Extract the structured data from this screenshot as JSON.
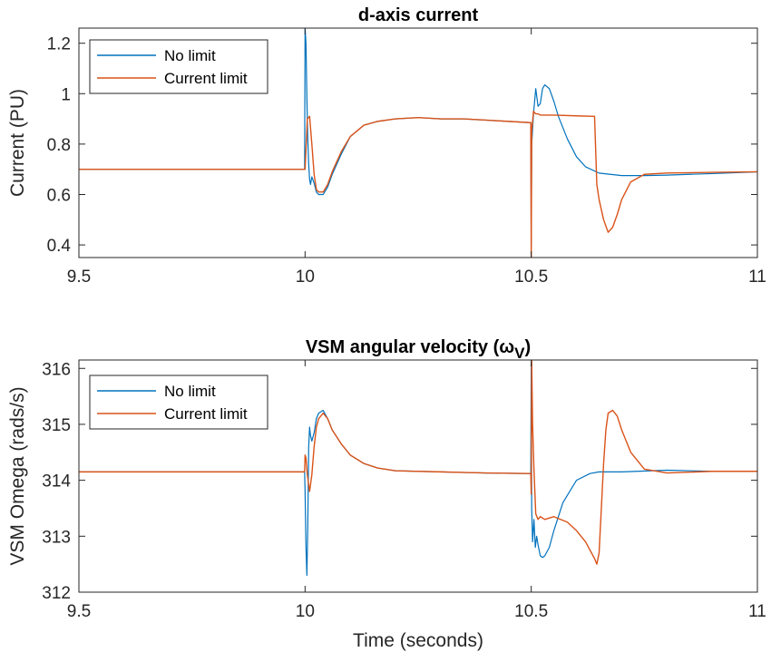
{
  "chart_data": [
    {
      "type": "line",
      "title": "d-axis current",
      "xlabel": "",
      "ylabel": "Current (PU)",
      "xlim": [
        9.5,
        11
      ],
      "ylim": [
        0.35,
        1.26
      ],
      "xticks": [
        9.5,
        10,
        10.5,
        11
      ],
      "xtick_labels": [
        "9.5",
        "10",
        "10.5",
        "11"
      ],
      "yticks": [
        0.4,
        0.6,
        0.8,
        1,
        1.2
      ],
      "ytick_labels": [
        "0.4",
        "0.6",
        "0.8",
        "1",
        "1.2"
      ],
      "grid": false,
      "legend_position": "top-left",
      "series": [
        {
          "name": "No limit",
          "color": "#0072BD",
          "x": [
            9.5,
            9.999,
            10.0,
            10.002,
            10.004,
            10.006,
            10.008,
            10.01,
            10.012,
            10.015,
            10.02,
            10.025,
            10.03,
            10.04,
            10.05,
            10.06,
            10.08,
            10.1,
            10.13,
            10.16,
            10.2,
            10.25,
            10.3,
            10.35,
            10.4,
            10.45,
            10.499,
            10.5,
            10.501,
            10.505,
            10.51,
            10.515,
            10.52,
            10.525,
            10.53,
            10.54,
            10.55,
            10.56,
            10.58,
            10.6,
            10.62,
            10.65,
            10.7,
            10.75,
            10.8,
            10.9,
            11.0
          ],
          "values": [
            0.7,
            0.7,
            1.26,
            1.2,
            0.98,
            0.82,
            0.72,
            0.66,
            0.64,
            0.67,
            0.645,
            0.61,
            0.6,
            0.6,
            0.63,
            0.68,
            0.76,
            0.83,
            0.875,
            0.89,
            0.9,
            0.905,
            0.9,
            0.9,
            0.895,
            0.89,
            0.885,
            0.4,
            0.8,
            0.92,
            1.02,
            0.95,
            0.96,
            1.02,
            1.035,
            1.02,
            0.97,
            0.91,
            0.82,
            0.75,
            0.71,
            0.685,
            0.675,
            0.675,
            0.677,
            0.683,
            0.69
          ]
        },
        {
          "name": "Current limit",
          "color": "#D95319",
          "x": [
            9.5,
            9.999,
            10.0,
            10.005,
            10.01,
            10.015,
            10.02,
            10.025,
            10.03,
            10.04,
            10.05,
            10.06,
            10.08,
            10.1,
            10.13,
            10.16,
            10.2,
            10.25,
            10.3,
            10.35,
            10.4,
            10.45,
            10.499,
            10.5,
            10.501,
            10.505,
            10.51,
            10.515,
            10.52,
            10.53,
            10.55,
            10.6,
            10.64,
            10.645,
            10.65,
            10.66,
            10.67,
            10.68,
            10.69,
            10.7,
            10.72,
            10.75,
            10.8,
            10.9,
            11.0
          ],
          "values": [
            0.7,
            0.7,
            0.7,
            0.9,
            0.91,
            0.8,
            0.68,
            0.62,
            0.61,
            0.61,
            0.64,
            0.69,
            0.77,
            0.83,
            0.875,
            0.89,
            0.9,
            0.905,
            0.9,
            0.9,
            0.895,
            0.89,
            0.885,
            0.35,
            0.85,
            0.93,
            0.92,
            0.92,
            0.915,
            0.915,
            0.915,
            0.912,
            0.91,
            0.64,
            0.58,
            0.5,
            0.45,
            0.47,
            0.52,
            0.58,
            0.65,
            0.68,
            0.685,
            0.688,
            0.69
          ]
        }
      ]
    },
    {
      "type": "line",
      "title": "VSM angular velocity (ω",
      "title_subscript": "V",
      "title_end": ")",
      "xlabel": "Time (seconds)",
      "ylabel": "VSM Omega (rads/s)",
      "xlim": [
        9.5,
        11
      ],
      "ylim": [
        312,
        316.15
      ],
      "xticks": [
        9.5,
        10,
        10.5,
        11
      ],
      "xtick_labels": [
        "9.5",
        "10",
        "10.5",
        "11"
      ],
      "yticks": [
        312,
        313,
        314,
        315,
        316
      ],
      "ytick_labels": [
        "312",
        "313",
        "314",
        "315",
        "316"
      ],
      "grid": false,
      "legend_position": "top-left",
      "series": [
        {
          "name": "No limit",
          "color": "#0072BD",
          "x": [
            9.5,
            9.999,
            10.0,
            10.002,
            10.004,
            10.006,
            10.008,
            10.01,
            10.012,
            10.015,
            10.02,
            10.025,
            10.03,
            10.04,
            10.05,
            10.06,
            10.08,
            10.1,
            10.13,
            10.16,
            10.2,
            10.3,
            10.4,
            10.499,
            10.5,
            10.501,
            10.503,
            10.506,
            10.509,
            10.512,
            10.515,
            10.52,
            10.525,
            10.53,
            10.54,
            10.55,
            10.57,
            10.6,
            10.63,
            10.65,
            10.7,
            10.8,
            10.9,
            11.0
          ],
          "values": [
            314.15,
            314.15,
            313.8,
            312.8,
            312.3,
            313.2,
            314.6,
            314.95,
            314.8,
            314.7,
            314.85,
            315.1,
            315.2,
            315.25,
            315.1,
            314.9,
            314.65,
            314.45,
            314.3,
            314.22,
            314.17,
            314.15,
            314.13,
            314.12,
            316.1,
            313.5,
            312.9,
            313.3,
            312.8,
            313.0,
            312.85,
            312.65,
            312.62,
            312.65,
            312.8,
            313.1,
            313.6,
            314.0,
            314.12,
            314.15,
            314.15,
            314.18,
            314.16,
            314.16
          ]
        },
        {
          "name": "Current limit",
          "color": "#D95319",
          "x": [
            9.5,
            9.999,
            10.0,
            10.002,
            10.005,
            10.01,
            10.015,
            10.02,
            10.025,
            10.03,
            10.04,
            10.05,
            10.06,
            10.08,
            10.1,
            10.13,
            10.16,
            10.2,
            10.3,
            10.4,
            10.499,
            10.5,
            10.501,
            10.503,
            10.506,
            10.51,
            10.515,
            10.52,
            10.53,
            10.55,
            10.58,
            10.6,
            10.62,
            10.64,
            10.645,
            10.65,
            10.655,
            10.66,
            10.665,
            10.67,
            10.68,
            10.69,
            10.7,
            10.72,
            10.75,
            10.8,
            10.9,
            11.0
          ],
          "values": [
            314.15,
            314.15,
            314.45,
            314.4,
            314.1,
            313.8,
            314.1,
            314.6,
            314.95,
            315.1,
            315.2,
            315.1,
            314.9,
            314.65,
            314.45,
            314.3,
            314.22,
            314.17,
            314.15,
            314.13,
            314.12,
            313.75,
            316.15,
            315.0,
            314.2,
            313.4,
            313.3,
            313.35,
            313.3,
            313.35,
            313.25,
            313.1,
            312.9,
            312.6,
            312.5,
            312.7,
            313.5,
            314.3,
            314.9,
            315.2,
            315.25,
            315.15,
            314.9,
            314.5,
            314.2,
            314.13,
            314.16,
            314.16
          ]
        }
      ]
    }
  ]
}
